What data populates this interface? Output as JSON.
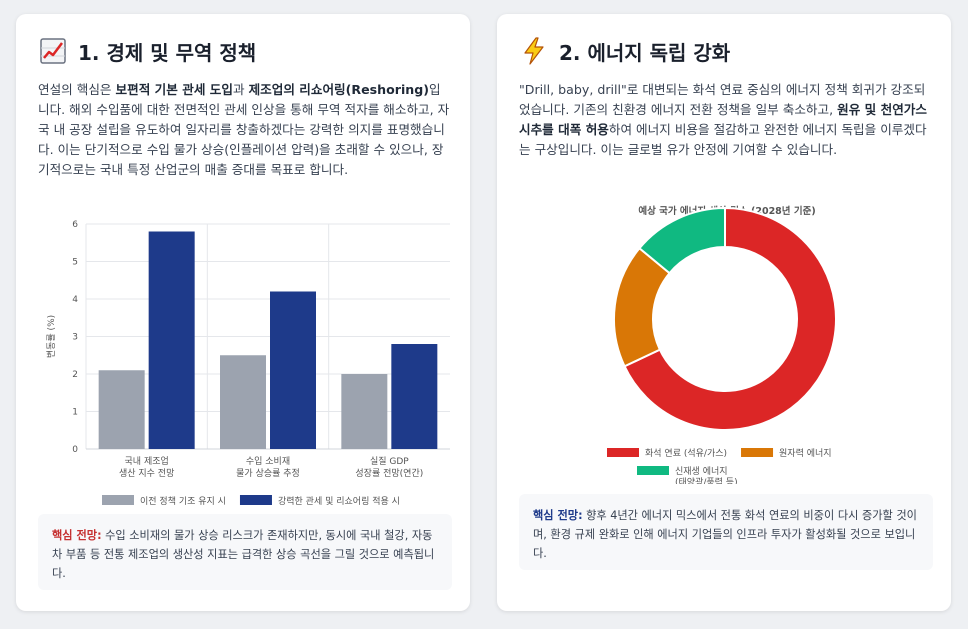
{
  "left": {
    "title": "1. 경제 및 무역 정책",
    "icon": "chart-increasing-icon",
    "para": [
      {
        "t": "연설의 핵심은 ",
        "b": false
      },
      {
        "t": "보편적 기본 관세 도입",
        "b": true
      },
      {
        "t": "과 ",
        "b": false
      },
      {
        "t": "제조업의 리쇼어링(Reshoring)",
        "b": true
      },
      {
        "t": "입니다. 해외 수입품에 대한 전면적인 관세 인상을 통해 무역 적자를 해소하고, 자국 내 공장 설립을 유도하여 일자리를 창출하겠다는 강력한 의지를 표명했습니다. 이는 단기적으로 수입 물가 상승(인플레이션 압력)을 초래할 수 있으나, 장기적으로는 국내 특정 산업군의 매출 증대를 목표로 합니다.",
        "b": false
      }
    ],
    "note_label": "핵심 전망:",
    "note_text": " 수입 소비재의 물가 상승 리스크가 존재하지만, 동시에 국내 철강, 자동차 부품 등 전통 제조업의 생산성 지표는 급격한 상승 곡선을 그릴 것으로 예측됩니다.",
    "note_color": "#c53030"
  },
  "right": {
    "title": "2. 에너지 독립 강화",
    "icon": "lightning-bolt-icon",
    "para": [
      {
        "t": "\"Drill, baby, drill\"로 대변되는 화석 연료 중심의 에너지 정책 회귀가 강조되었습니다. 기존의 친환경 에너지 전환 정책을 일부 축소하고, ",
        "b": false
      },
      {
        "t": "원유 및 천연가스 시추를 대폭 허용",
        "b": true
      },
      {
        "t": "하여 에너지 비용을 절감하고 완전한 에너지 독립을 이루겠다는 구상입니다. 이는 글로벌 유가 안정에 기여할 수 있습니다.",
        "b": false
      }
    ],
    "note_label": "핵심 전망:",
    "note_text": " 향후 4년간 에너지 믹스에서 전통 화석 연료의 비중이 다시 증가할 것이며, 환경 규제 완화로 인해 에너지 기업들의 인프라 투자가 활성화될 것으로 보입니다.",
    "note_color": "#1e3a8a"
  },
  "chart_data": [
    {
      "type": "bar",
      "categories": [
        [
          "국내 제조업",
          "생산 지수 전망"
        ],
        [
          "수입 소비재",
          "물가 상승률 추정"
        ],
        [
          "실질 GDP",
          "성장률 전망(연간)"
        ]
      ],
      "series": [
        {
          "name": "이전 정책 기조 유지 시",
          "values": [
            2.1,
            2.5,
            2.0
          ],
          "color": "#9ca3af"
        },
        {
          "name": "강력한 관세 및 리쇼어링 적용 시",
          "values": [
            5.8,
            4.2,
            2.8
          ],
          "color": "#1e3a8a"
        }
      ],
      "ylabel": "변동률 (%)",
      "ylim": [
        0,
        6
      ],
      "yticks": [
        "0",
        "1",
        "2",
        "3",
        "4",
        "5",
        "6"
      ],
      "grid": true,
      "legend": "bottom"
    },
    {
      "type": "pie",
      "title": "예상 국가 에너지 생산 믹스 (2028년 기준)",
      "labels": [
        "화석 연료 (석유/가스)",
        "원자력 에너지",
        "신재생 에너지 (태양광/풍력 등)"
      ],
      "values": [
        68,
        18,
        14
      ],
      "colors": [
        "#dc2626",
        "#d97706",
        "#10b981"
      ],
      "legend": "bottom"
    }
  ]
}
